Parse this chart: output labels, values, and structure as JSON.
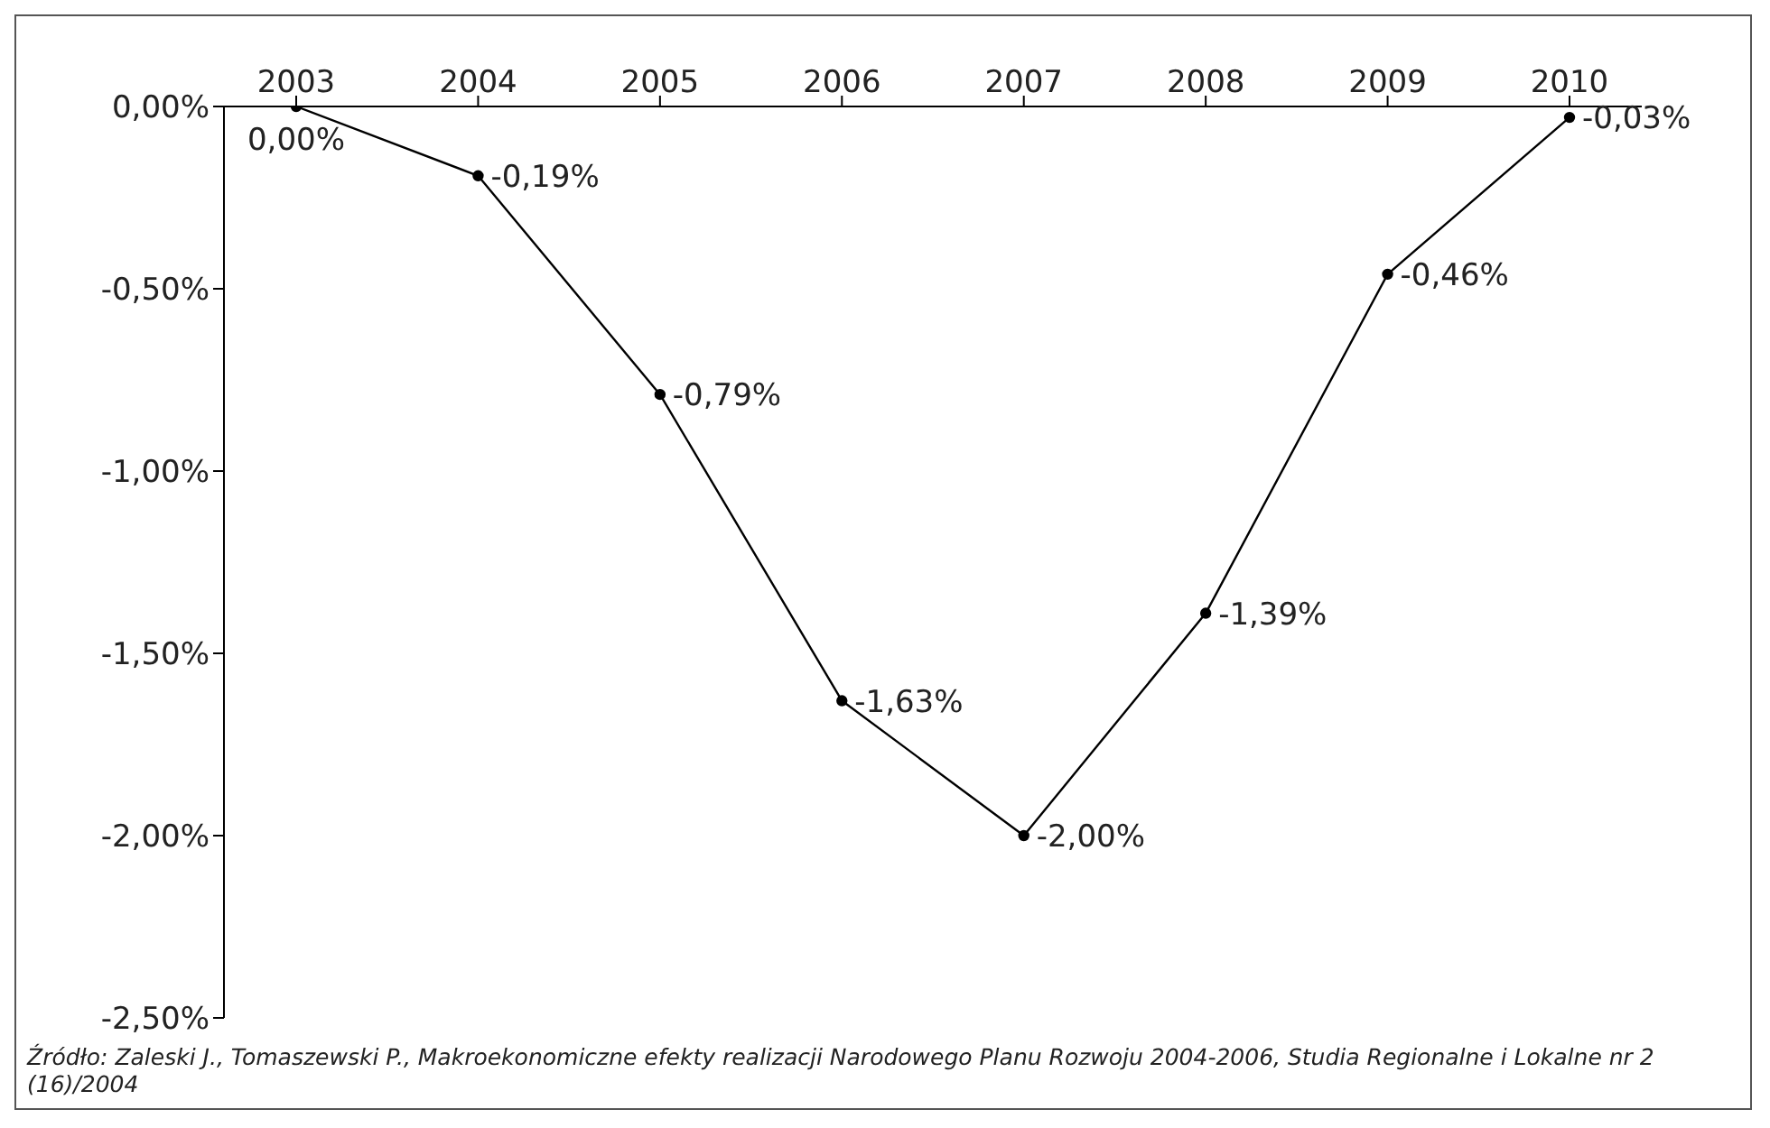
{
  "chart_data": {
    "type": "line",
    "categories": [
      "2003",
      "2004",
      "2005",
      "2006",
      "2007",
      "2008",
      "2009",
      "2010"
    ],
    "values": [
      0,
      -0.19,
      -0.79,
      -1.63,
      -2.0,
      -1.39,
      -0.46,
      -0.03
    ],
    "value_labels": [
      "0,00%",
      "-0,19%",
      "-0,79%",
      "-1,63%",
      "-2,00%",
      "-1,39%",
      "-0,46%",
      "-0,03%"
    ],
    "color": "#000000",
    "marker": "circle",
    "line_style": "solid",
    "ylim": [
      -2.5,
      0
    ],
    "yticks": [
      {
        "value": -2.5,
        "label": "-2,50%"
      },
      {
        "value": -2,
        "label": "-2,00%"
      },
      {
        "value": -1.5,
        "label": "-1,50%"
      },
      {
        "value": -1,
        "label": "-1,00%"
      },
      {
        "value": -0.5,
        "label": "-0,50%"
      },
      {
        "value": 0,
        "label": "0,00%"
      }
    ],
    "annotations": [
      "Źródło: Zaleski J., Tomaszewski P., Makroekonomiczne efekty realizacji Narodowego Planu Rozwoju 2004-2006, Studia Regionalne i Lokalne nr 2 (16)/2004"
    ]
  }
}
